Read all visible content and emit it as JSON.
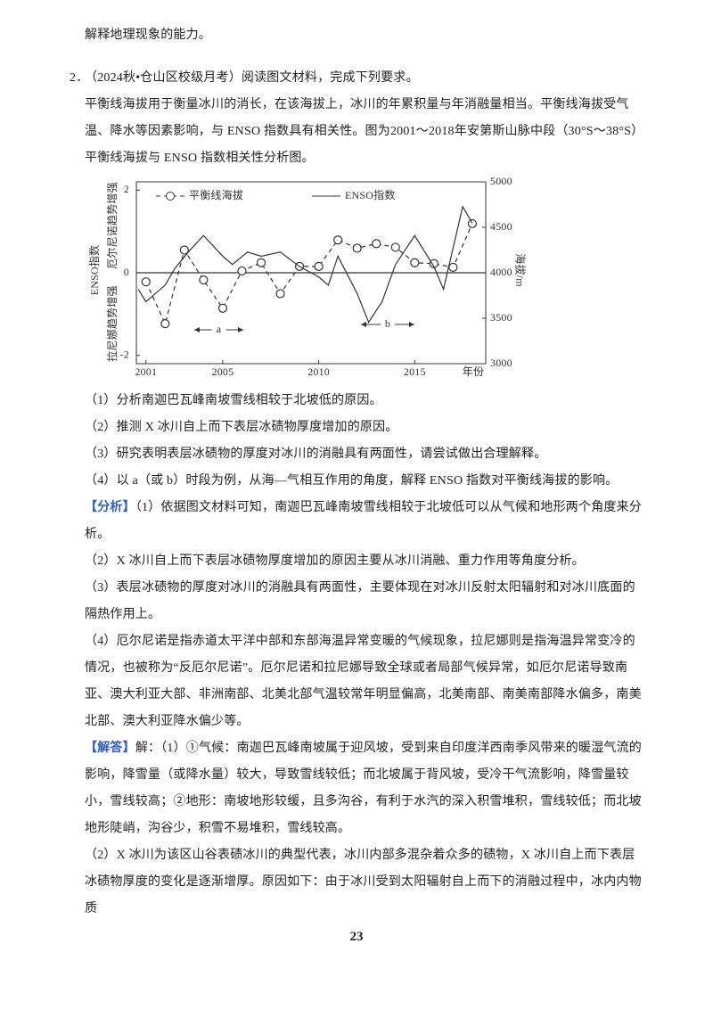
{
  "intro": "解释地理现象的能力。",
  "question": {
    "number": "2．",
    "source": "（2024秋•仓山区校级月考）阅读图文材料，完成下列要求。",
    "material": "平衡线海拔用于衡量冰川的消长，在该海拔上，冰川的年累积量与年消融量相当。平衡线海拔受气温、降水等因素影响，与 ENSO 指数具有相关性。图为2001～2018年安第斯山脉中段（30°S～38°S）平衡线海拔与 ENSO 指数相关性分析图。",
    "sub_questions": [
      "（1）分析南迦巴瓦峰南坡雪线相较于北坡低的原因。",
      "（2）推测 X 冰川自上而下表层冰碛物厚度增加的原因。",
      "（3）研究表明表层冰碛物的厚度对冰川的消融具有两面性，请尝试做出合理解释。",
      "（4）以 a（或 b）时段为例，从海—气相互作用的角度，解释 ENSO 指数对平衡线海拔的影响。"
    ]
  },
  "chart_data": {
    "type": "line",
    "x_label": "年份",
    "y_labels": [
      "厄尔尼诺趋势增强",
      "ENSO指数",
      "拉尼娜趋势增强"
    ],
    "y2_label": "海拔/m",
    "xlim": [
      2000.5,
      2018.7
    ],
    "xticks": [
      2001,
      2005,
      2010,
      2015
    ],
    "ylim": [
      -2.2,
      2.2
    ],
    "yticks": [
      -2,
      0,
      2
    ],
    "y2lim": [
      3000,
      5000
    ],
    "y2ticks": [
      3000,
      3500,
      4000,
      4500,
      5000
    ],
    "annotations": [
      "a",
      "b"
    ],
    "series": [
      {
        "name": "平衡线海拔",
        "color": "#333333",
        "axis": "y2",
        "style": "dashed",
        "marker": "circle",
        "x": [
          2001,
          2002,
          2003,
          2004,
          2005,
          2006,
          2007,
          2008,
          2009,
          2010,
          2011,
          2012,
          2013,
          2014,
          2015,
          2016,
          2017,
          2018
        ],
        "values": [
          3900,
          3440,
          4250,
          3920,
          3610,
          4020,
          4110,
          3770,
          4070,
          4070,
          4360,
          4270,
          4320,
          4280,
          4110,
          4100,
          4060,
          4540
        ]
      },
      {
        "name": "ENSO指数",
        "color": "#333333",
        "axis": "y",
        "style": "solid",
        "x": [
          2000.6,
          2001,
          2002,
          2002.5,
          2003.2,
          2004,
          2005,
          2005.5,
          2006.3,
          2007,
          2008,
          2009,
          2010,
          2010.5,
          2011,
          2012,
          2012.6,
          2013.3,
          2014,
          2015,
          2016,
          2016.5,
          2017.5,
          2018
        ],
        "values": [
          -0.4,
          -0.7,
          -0.3,
          0.1,
          0.5,
          0.9,
          0.4,
          0.2,
          0.5,
          0.4,
          0.5,
          0.15,
          -0.1,
          -0.3,
          0.4,
          -0.5,
          -1.2,
          -0.7,
          0.2,
          0.9,
          0.15,
          -0.4,
          1.6,
          1.2
        ]
      }
    ]
  },
  "analysis": {
    "label": "【分析】",
    "paragraphs": [
      "（1）依据图文材料可知，南迦巴瓦峰南坡雪线相较于北坡低可以从气候和地形两个角度来分析。",
      "（2）X 冰川自上而下表层冰碛物厚度增加的原因主要从冰川消融、重力作用等角度分析。",
      "（3）表层冰碛物的厚度对冰川的消融具有两面性，主要体现在对冰川反射太阳辐射和对冰川底面的隔热作用上。",
      "（4）厄尔尼诺是指赤道太平洋中部和东部海温异常变暖的气候现象，拉尼娜则是指海温异常变冷的情况，也被称为“反厄尔尼诺”。厄尔尼诺和拉尼娜导致全球或者局部气候异常，如厄尔尼诺导致南亚、澳大利亚大部、非洲南部、北美北部气温较常年明显偏高，北美南部、南美南部降水偏多，南美北部、澳大利亚降水偏少等。"
    ]
  },
  "answer": {
    "label": "【解答】",
    "paragraphs": [
      "解：（1）①气候：南迦巴瓦峰南坡属于迎风坡，受到来自印度洋西南季风带来的暖湿气流的影响，降雪量（或降水量）较大，导致雪线较低；而北坡属于背风坡，受冷干气流影响，降雪量较小，雪线较高；②地形：南坡地形较缓，且多沟谷，有利于水汽的深入积雪堆积，雪线较低；而北坡地形陡峭，沟谷少，积雪不易堆积，雪线较高。",
      "（2）X 冰川为该区山谷表碛冰川的典型代表，冰川内部多混杂着众多的碛物，X 冰川自上而下表层冰碛物厚度的变化是逐渐增厚。原因如下：由于冰川受到太阳辐射自上而下的消融过程中，冰内内物质"
    ]
  },
  "page_number": "23"
}
